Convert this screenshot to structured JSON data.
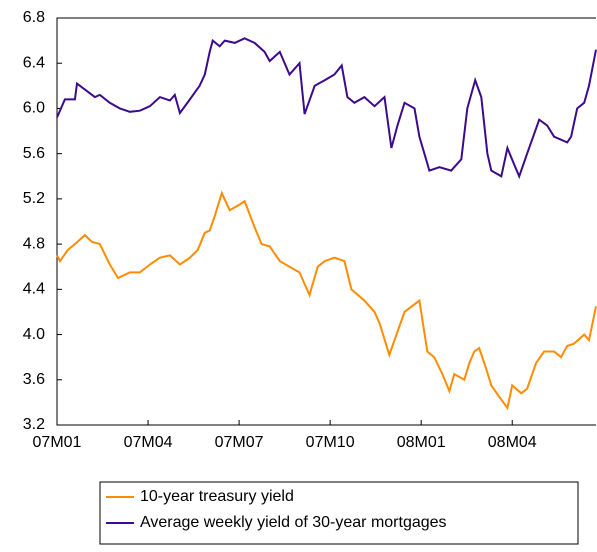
{
  "chart_data": {
    "type": "line",
    "xlim": [
      0,
      17.76
    ],
    "xticks": [
      {
        "value": 0,
        "label": "07M01"
      },
      {
        "value": 3,
        "label": "07M04"
      },
      {
        "value": 6,
        "label": "07M07"
      },
      {
        "value": 9,
        "label": "07M10"
      },
      {
        "value": 12,
        "label": "08M01"
      },
      {
        "value": 15,
        "label": "08M04"
      }
    ],
    "ylim": [
      3.2,
      6.8
    ],
    "yticks": [
      3.2,
      3.6,
      {
        "value": 4,
        "label": "4.0"
      },
      4.4,
      4.8,
      5.2,
      5.6,
      {
        "value": 6,
        "label": "6.0"
      },
      6.4,
      6.8
    ],
    "legend": "bottom",
    "series": [
      {
        "name": "10-year treasury yield",
        "color": "#ff8c00",
        "x": [
          0,
          0.1,
          0.36,
          0.59,
          0.92,
          1.15,
          1.41,
          1.74,
          2.01,
          2.4,
          2.73,
          3.06,
          3.39,
          3.72,
          4.05,
          4.38,
          4.64,
          4.87,
          5.03,
          5.2,
          5.43,
          5.69,
          6.02,
          6.18,
          6.51,
          6.74,
          7.01,
          7.34,
          7.66,
          7.99,
          8.32,
          8.59,
          8.82,
          9.14,
          9.47,
          9.7,
          10.13,
          10.46,
          10.63,
          10.95,
          11.12,
          11.45,
          11.94,
          12.2,
          12.43,
          12.7,
          12.93,
          13.09,
          13.42,
          13.59,
          13.75,
          13.91,
          14.14,
          14.31,
          14.57,
          14.84,
          15.0,
          15.3,
          15.49,
          15.79,
          16.05,
          16.38,
          16.61,
          16.81,
          17.04,
          17.37,
          17.53,
          17.76
        ],
        "values": [
          4.7,
          4.65,
          4.75,
          4.8,
          4.88,
          4.82,
          4.8,
          4.62,
          4.5,
          4.55,
          4.55,
          4.62,
          4.68,
          4.7,
          4.62,
          4.68,
          4.75,
          4.9,
          4.92,
          5.05,
          5.25,
          5.1,
          5.15,
          5.18,
          4.95,
          4.8,
          4.78,
          4.65,
          4.6,
          4.55,
          4.35,
          4.6,
          4.65,
          4.68,
          4.65,
          4.4,
          4.3,
          4.2,
          4.1,
          3.82,
          3.95,
          4.2,
          4.3,
          3.85,
          3.8,
          3.65,
          3.5,
          3.65,
          3.6,
          3.75,
          3.85,
          3.88,
          3.7,
          3.55,
          3.45,
          3.35,
          3.55,
          3.48,
          3.52,
          3.75,
          3.85,
          3.85,
          3.8,
          3.9,
          3.92,
          4.0,
          3.95,
          4.25
        ]
      },
      {
        "name": "Average weekly yield of 30-year mortgages",
        "color": "#3c0a8c",
        "x": [
          0,
          0.26,
          0.59,
          0.66,
          1.25,
          1.41,
          1.74,
          2.07,
          2.4,
          2.73,
          3.06,
          3.39,
          3.72,
          3.88,
          4.05,
          4.38,
          4.7,
          4.87,
          5.03,
          5.13,
          5.36,
          5.53,
          5.86,
          6.18,
          6.51,
          6.84,
          7.01,
          7.34,
          7.66,
          7.99,
          8.16,
          8.49,
          8.82,
          9.14,
          9.38,
          9.57,
          9.8,
          10.13,
          10.46,
          10.79,
          11.02,
          11.22,
          11.45,
          11.78,
          11.94,
          12.27,
          12.6,
          12.99,
          13.32,
          13.52,
          13.78,
          13.98,
          14.18,
          14.31,
          14.64,
          14.84,
          15.07,
          15.23,
          15.49,
          15.89,
          16.15,
          16.38,
          16.81,
          16.94,
          17.14,
          17.37,
          17.53,
          17.76
        ],
        "values": [
          5.92,
          6.08,
          6.08,
          6.22,
          6.1,
          6.12,
          6.05,
          6.0,
          5.97,
          5.98,
          6.02,
          6.1,
          6.07,
          6.12,
          5.96,
          6.08,
          6.2,
          6.3,
          6.5,
          6.6,
          6.55,
          6.6,
          6.58,
          6.62,
          6.58,
          6.5,
          6.42,
          6.5,
          6.3,
          6.4,
          5.95,
          6.2,
          6.25,
          6.3,
          6.38,
          6.1,
          6.05,
          6.1,
          6.02,
          6.1,
          5.65,
          5.85,
          6.05,
          6.0,
          5.75,
          5.45,
          5.48,
          5.45,
          5.55,
          6.0,
          6.25,
          6.1,
          5.6,
          5.45,
          5.4,
          5.65,
          5.5,
          5.4,
          5.6,
          5.9,
          5.85,
          5.75,
          5.7,
          5.75,
          6.0,
          6.05,
          6.2,
          6.52
        ]
      }
    ]
  }
}
